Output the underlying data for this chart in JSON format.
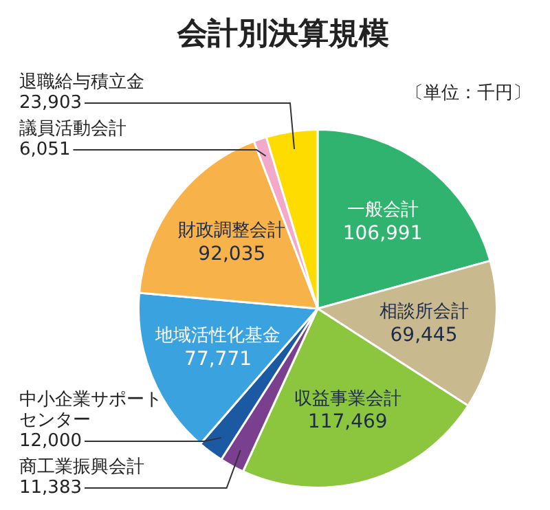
{
  "chart_data": {
    "type": "pie",
    "title": "会計別決算規模",
    "annotations": [
      "〔単位：千円〕"
    ],
    "categories": [
      "一般会計",
      "相談所会計",
      "収益事業会計",
      "商工業振興会計",
      "中小企業サポートセンター",
      "地域活性化基金",
      "財政調整会計",
      "議員活動会計",
      "退職給与積立金"
    ],
    "values": [
      106991,
      69445,
      117469,
      11383,
      12000,
      77771,
      92035,
      6051,
      23903
    ],
    "colors": [
      "#2fb36e",
      "#c8b98e",
      "#8cc63f",
      "#7b3f8f",
      "#1b5aa2",
      "#3ba2e0",
      "#f7b34a",
      "#f3a9c9",
      "#ffdc00"
    ],
    "value_labels": [
      "106,991",
      "69,445",
      "117,469",
      "11,383",
      "12,000",
      "77,771",
      "92,035",
      "6,051",
      "23,903"
    ],
    "legend": false
  }
}
